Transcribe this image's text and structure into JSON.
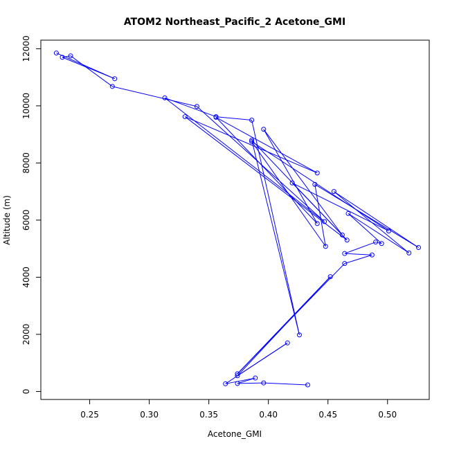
{
  "chart_data": {
    "type": "scatter",
    "title": "ATOM2 Northeast_Pacific_2 Acetone_GMI",
    "xlabel": "Acetone_GMI",
    "ylabel": "Altitude (m)",
    "xlim": [
      0.209,
      0.535
    ],
    "ylim": [
      -280,
      12300
    ],
    "xticks": [
      0.25,
      0.3,
      0.35,
      0.4,
      0.45,
      0.5
    ],
    "xtick_labels": [
      "0.25",
      "0.30",
      "0.35",
      "0.40",
      "0.45",
      "0.50"
    ],
    "yticks": [
      0,
      2000,
      4000,
      6000,
      8000,
      10000,
      12000
    ],
    "ytick_labels": [
      "0",
      "2000",
      "4000",
      "6000",
      "8000",
      "10000",
      "12000"
    ],
    "grid": false,
    "series": [
      {
        "color": "#0000ff",
        "marker": "open-circle",
        "connected": true,
        "points": [
          [
            0.222,
            11850
          ],
          [
            0.227,
            11700
          ],
          [
            0.234,
            11750
          ],
          [
            0.271,
            10950
          ],
          [
            0.269,
            10680
          ],
          [
            0.313,
            10280
          ],
          [
            0.34,
            9980
          ],
          [
            0.356,
            9600
          ],
          [
            0.33,
            9620
          ],
          [
            0.356,
            9620
          ],
          [
            0.386,
            9500
          ],
          [
            0.396,
            9180
          ],
          [
            0.386,
            8800
          ],
          [
            0.386,
            8750
          ],
          [
            0.441,
            7650
          ],
          [
            0.42,
            7300
          ],
          [
            0.439,
            7250
          ],
          [
            0.455,
            7000
          ],
          [
            0.467,
            6230
          ],
          [
            0.447,
            5950
          ],
          [
            0.441,
            5880
          ],
          [
            0.501,
            5620
          ],
          [
            0.462,
            5480
          ],
          [
            0.49,
            5230
          ],
          [
            0.466,
            5300
          ],
          [
            0.495,
            5180
          ],
          [
            0.448,
            5080
          ],
          [
            0.526,
            5040
          ],
          [
            0.518,
            4850
          ],
          [
            0.464,
            4830
          ],
          [
            0.487,
            4780
          ],
          [
            0.464,
            4480
          ],
          [
            0.452,
            4020
          ],
          [
            0.426,
            1980
          ],
          [
            0.416,
            1700
          ],
          [
            0.374,
            620
          ],
          [
            0.374,
            550
          ],
          [
            0.389,
            470
          ],
          [
            0.364,
            270
          ],
          [
            0.374,
            280
          ],
          [
            0.396,
            300
          ],
          [
            0.433,
            230
          ]
        ],
        "path_order": [
          0,
          3,
          1,
          2,
          4,
          6,
          19,
          5,
          9,
          10,
          33,
          12,
          24,
          8,
          14,
          7,
          20,
          11,
          22,
          15,
          21,
          13,
          26,
          16,
          27,
          17,
          28,
          18,
          25,
          23,
          29,
          30,
          31,
          35,
          32,
          36,
          34,
          38,
          37,
          39,
          40,
          41
        ]
      }
    ]
  }
}
